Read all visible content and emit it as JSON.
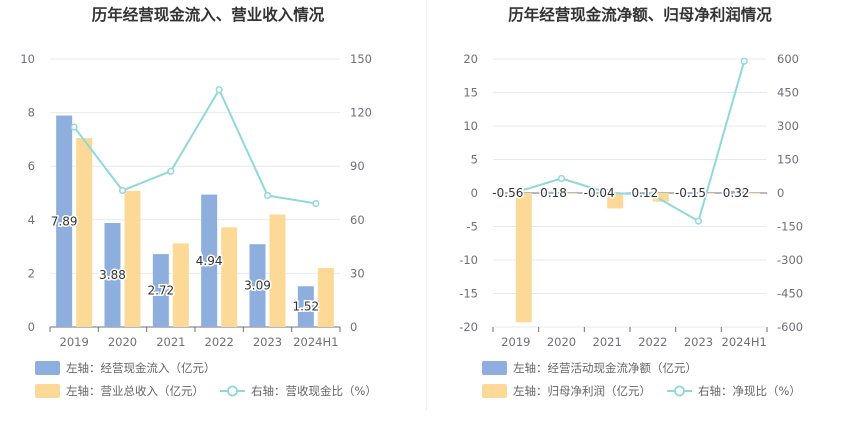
{
  "chart_data": [
    {
      "type": "bar",
      "title": "历年经营现金流入、营业收入情况",
      "categories": [
        "2019",
        "2020",
        "2021",
        "2022",
        "2023",
        "2024H1"
      ],
      "left_axis": {
        "range": [
          0,
          10
        ],
        "ticks": [
          "0",
          "2",
          "4",
          "6",
          "8",
          "10"
        ]
      },
      "right_axis": {
        "range": [
          0,
          150
        ],
        "ticks": [
          "0",
          "30",
          "60",
          "90",
          "120",
          "150"
        ]
      },
      "series": [
        {
          "name": "左轴：经营现金流入（亿元）",
          "type": "bar",
          "axis": "left",
          "color": "#8eaedd",
          "values": [
            7.89,
            3.88,
            2.72,
            4.94,
            3.09,
            1.52
          ],
          "labels": [
            "7.89",
            "3.88",
            "2.72",
            "4.94",
            "3.09",
            "1.52"
          ]
        },
        {
          "name": "左轴：营业总收入（亿元）",
          "type": "bar",
          "axis": "left",
          "color": "#fdd998",
          "values": [
            7.05,
            5.08,
            3.12,
            3.72,
            4.2,
            2.2
          ]
        },
        {
          "name": "右轴：营收现金比（%）",
          "type": "line",
          "axis": "right",
          "color": "#8fd8dc",
          "values": [
            111.9,
            76.4,
            87.2,
            132.8,
            73.6,
            69.1
          ]
        }
      ],
      "grid": true,
      "legend_position": "bottom-left"
    },
    {
      "type": "bar",
      "title": "历年经营现金流净额、归母净利润情况",
      "categories": [
        "2019",
        "2020",
        "2021",
        "2022",
        "2023",
        "2024H1"
      ],
      "left_axis": {
        "range": [
          -20,
          20
        ],
        "ticks": [
          "-20",
          "-15",
          "-10",
          "-5",
          "0",
          "5",
          "10",
          "15",
          "20"
        ]
      },
      "right_axis": {
        "range": [
          -600,
          600
        ],
        "ticks": [
          "-600",
          "-450",
          "-300",
          "-150",
          "0",
          "150",
          "300",
          "450",
          "600"
        ]
      },
      "series": [
        {
          "name": "左轴：经营活动现金流净额（亿元）",
          "type": "bar",
          "axis": "left",
          "color": "#8eaedd",
          "values": [
            -0.56,
            0.18,
            -0.04,
            0.12,
            -0.15,
            0.32
          ],
          "labels": [
            "-0.56",
            "0.18",
            "-0.04",
            "0.12",
            "-0.15",
            "0.32"
          ]
        },
        {
          "name": "左轴：归母净利润（亿元）",
          "type": "bar",
          "axis": "left",
          "color": "#fdd998",
          "values": [
            -19.3,
            -0.1,
            -2.3,
            -1.3,
            -0.05,
            0.01
          ]
        },
        {
          "name": "右轴：净现比（%）",
          "type": "line",
          "axis": "right",
          "color": "#8fd8dc",
          "values": [
            2.9,
            65,
            1.7,
            -9.2,
            -126,
            590
          ]
        }
      ],
      "grid": true,
      "legend_position": "bottom-left"
    }
  ]
}
